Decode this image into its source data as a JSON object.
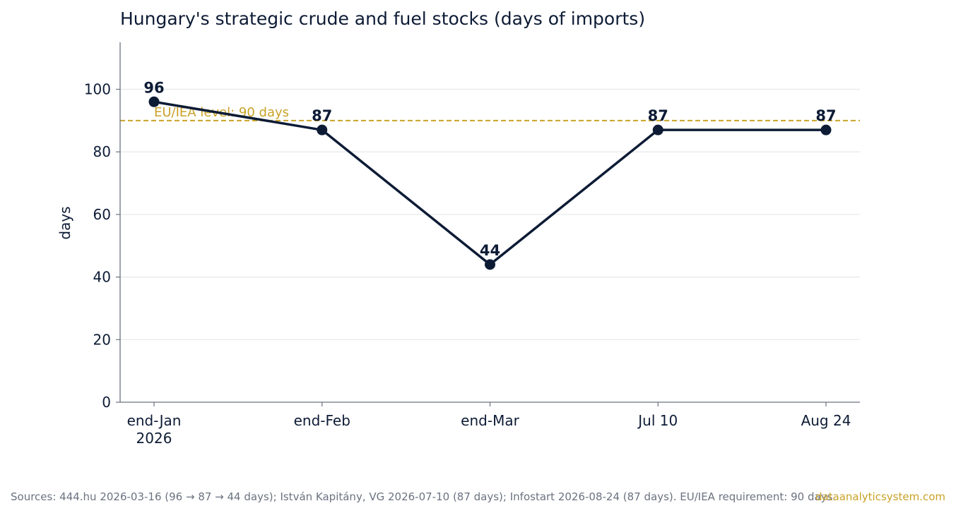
{
  "chart_data": {
    "type": "line",
    "title": "Hungary's strategic crude and fuel stocks (days of imports)",
    "xlabel": "",
    "ylabel": "days",
    "categories": [
      "end-Jan\n2026",
      "end-Feb",
      "end-Mar",
      "Jul 10",
      "Aug 24"
    ],
    "series": [
      {
        "values": [
          96,
          87,
          44,
          87,
          87
        ]
      }
    ],
    "data_labels": [
      "96",
      "87",
      "44",
      "87",
      "87"
    ],
    "ylim": [
      0,
      115
    ],
    "yticks": [
      0,
      20,
      40,
      60,
      80,
      100
    ],
    "grid": "horizontal",
    "reference_line": {
      "value": 90,
      "label": "EU/IEA level: 90 days",
      "style": "dashed"
    },
    "colors": {
      "line": "#0d1b35",
      "reference": "#c9a227",
      "grid": "#e5e7eb",
      "axis": "#6b7280"
    }
  },
  "footer": {
    "source": "Sources: 444.hu 2026-03-16 (96 → 87 → 44 days); István Kapitány, VG 2026-07-10 (87 days); Infostart 2026-08-24 (87 days). EU/IEA requirement: 90 days.",
    "brand": "dataanalyticsystem.com"
  }
}
